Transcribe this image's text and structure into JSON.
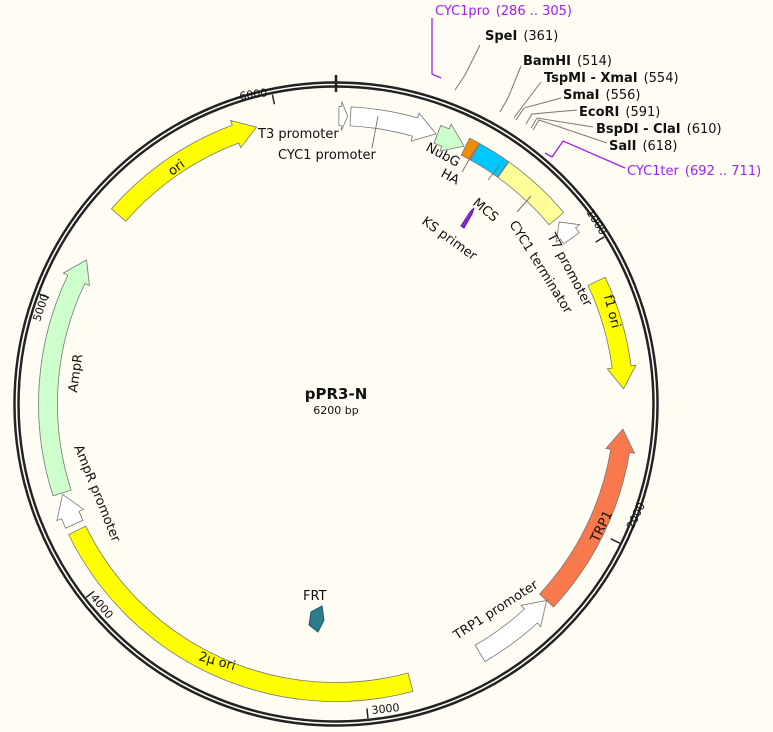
{
  "plasmid": {
    "name": "pPR3-N",
    "size_label": "6200 bp",
    "length_bp": 6200
  },
  "ticks": [
    "1000",
    "2000",
    "3000",
    "4000",
    "5000",
    "6000"
  ],
  "colors": {
    "background": "#fffcf4",
    "backbone": "#222222",
    "primer": "#a020f0"
  },
  "features": [
    {
      "id": "ori",
      "label": "ori",
      "start": 5356,
      "end": 5924,
      "dir": 1,
      "color": "#ffff00"
    },
    {
      "id": "f1-ori",
      "label": "f1 ori",
      "start": 1116,
      "end": 1498,
      "dir": 1,
      "color": "#ffff00"
    },
    {
      "id": "trp1",
      "label": "TRP1",
      "start": 1636,
      "end": 2291,
      "dir": -1,
      "color": "#f9784c"
    },
    {
      "id": "trp1-promoter",
      "label": "TRP1 promoter",
      "start": 2291,
      "end": 2583,
      "dir": -1,
      "color": "#ffffff"
    },
    {
      "id": "2mu-ori",
      "label": "2μ ori",
      "start": 2842,
      "end": 4202,
      "dir": 0,
      "color": "#ffff00"
    },
    {
      "id": "ampr-promoter",
      "label": "AmpR promoter",
      "start": 4225,
      "end": 4335,
      "dir": 1,
      "color": "#ffffff"
    },
    {
      "id": "ampr",
      "label": "AmpR",
      "start": 4340,
      "end": 5167,
      "dir": 1,
      "color": "#ccffcc"
    },
    {
      "id": "t3-promoter",
      "label": "T3 promoter",
      "start": 10,
      "end": 40,
      "dir": 1,
      "color": "#ffffff"
    },
    {
      "id": "cyc1-promoter",
      "label": "CYC1 promoter",
      "start": 50,
      "end": 350,
      "dir": 1,
      "color": "#ffffff"
    },
    {
      "id": "nubg",
      "label": "NubG",
      "start": 355,
      "end": 455,
      "dir": 1,
      "color": "#ccffcc"
    },
    {
      "id": "ha",
      "label": "HA",
      "start": 460,
      "end": 495,
      "dir": 0,
      "color": "#f28c00"
    },
    {
      "id": "mcs",
      "label": "MCS",
      "start": 498,
      "end": 610,
      "dir": 0,
      "color": "#00c8ff"
    },
    {
      "id": "cyc1-terminator",
      "label": "CYC1 terminator",
      "start": 612,
      "end": 860,
      "dir": 0,
      "color": "#ffff99"
    },
    {
      "id": "t7-promoter",
      "label": "T7 promoter",
      "start": 875,
      "end": 945,
      "dir": -1,
      "color": "#ffffff"
    }
  ],
  "inner_features": {
    "frt": {
      "label": "FRT",
      "color": "#2e7d8c"
    },
    "ks_primer": {
      "label": "KS primer",
      "color": "#8a2be2"
    }
  },
  "primer_sites": [
    {
      "name": "CYC1pro",
      "range": "(286 .. 305)"
    },
    {
      "name": "CYC1ter",
      "range": "(692 .. 711)"
    }
  ],
  "restriction_sites": [
    {
      "name": "SpeI",
      "pos": "(361)"
    },
    {
      "name": "BamHI",
      "pos": "(514)"
    },
    {
      "name": "TspMI - XmaI",
      "pos": "(554)"
    },
    {
      "name": "SmaI",
      "pos": "(556)"
    },
    {
      "name": "EcoRI",
      "pos": "(591)"
    },
    {
      "name": "BspDI - ClaI",
      "pos": "(610)"
    },
    {
      "name": "SalI",
      "pos": "(618)"
    }
  ]
}
